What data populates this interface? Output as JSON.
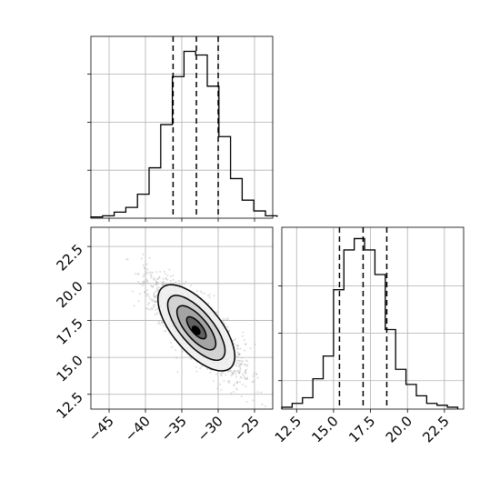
{
  "chart_data": [
    {
      "type": "histogram",
      "panel": "top-left marginal (x)",
      "bin_edges": [
        -47.5,
        -45.9,
        -44.3,
        -42.7,
        -41.1,
        -39.5,
        -37.9,
        -36.3,
        -34.7,
        -33.1,
        -31.5,
        -29.9,
        -28.3,
        -26.7,
        -25.1,
        -23.5,
        -21.9
      ],
      "values": [
        1,
        2,
        5,
        9,
        20,
        42,
        78,
        118,
        139,
        136,
        110,
        68,
        33,
        15,
        6,
        2,
        1
      ],
      "quantile_lines": [
        -36.2,
        -33.0,
        -30.0
      ],
      "xlim": [
        -47.5,
        -22.5
      ],
      "ylim": [
        0,
        150
      ],
      "grid": true
    },
    {
      "type": "histogram",
      "panel": "bottom-right marginal (y)",
      "bin_edges": [
        11.5,
        12.2,
        12.9,
        13.6,
        14.3,
        15.0,
        15.7,
        16.4,
        17.1,
        17.8,
        18.5,
        19.2,
        19.9,
        20.6,
        21.3,
        22.0,
        22.7,
        23.4
      ],
      "values": [
        1,
        3,
        6,
        16,
        28,
        63,
        84,
        90,
        84,
        71,
        42,
        21,
        13,
        7,
        3,
        2,
        1
      ],
      "quantile_lines": [
        15.4,
        17.0,
        18.6
      ],
      "xlim": [
        11.5,
        23.8
      ],
      "ylim": [
        0,
        95
      ],
      "grid": true
    },
    {
      "type": "scatter",
      "panel": "bottom-left 2D density",
      "center": [
        -33.0,
        17.0
      ],
      "correlation": -0.78,
      "std": [
        3.0,
        1.55
      ],
      "xlim": [
        -47.5,
        -22.5
      ],
      "ylim": [
        11.5,
        23.8
      ],
      "contour_levels": 4,
      "grid": true,
      "xticks": [
        "−45",
        "−40",
        "−35",
        "−30",
        "−25"
      ],
      "yticks": [
        "12.5",
        "15.0",
        "17.5",
        "20.0",
        "22.5"
      ]
    },
    {
      "type": "histogram",
      "panel": "bottom-right x ticks",
      "xticks": [
        "12.5",
        "15.0",
        "17.5",
        "20.0",
        "22.5"
      ]
    }
  ],
  "colors": {
    "line": "#000000",
    "grid": "#b0b0b0",
    "scatter": "#9a9a9a",
    "fill_levels": [
      "#f0f0f0",
      "#cfcfcf",
      "#9f9f9f",
      "#5a5a5a"
    ]
  }
}
